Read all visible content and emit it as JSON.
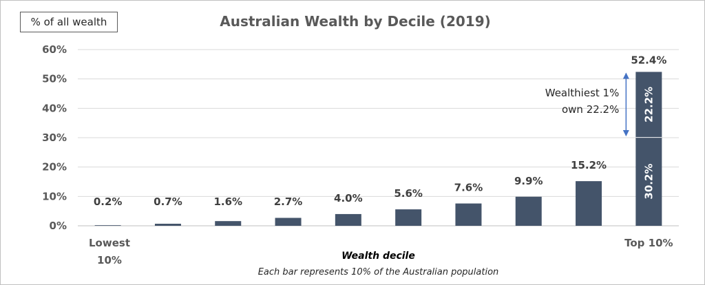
{
  "chart_data": {
    "type": "bar",
    "title": "Australian Wealth by Decile (2019)",
    "ylabel": "% of all wealth",
    "xlabel": "Wealth decile",
    "xsubtitle": "Each bar represents 10% of the Australian population",
    "ylim": [
      0,
      60
    ],
    "yticks": [
      0,
      10,
      20,
      30,
      40,
      50,
      60
    ],
    "ytick_labels": [
      "0%",
      "10%",
      "20%",
      "30%",
      "40%",
      "50%",
      "60%"
    ],
    "grid": true,
    "categories": [
      "1",
      "2",
      "3",
      "4",
      "5",
      "6",
      "7",
      "8",
      "9",
      "10"
    ],
    "values": [
      0.2,
      0.7,
      1.6,
      2.7,
      4.0,
      5.6,
      7.6,
      9.9,
      15.2,
      52.4
    ],
    "value_labels": [
      "0.2%",
      "0.7%",
      "1.6%",
      "2.7%",
      "4.0%",
      "5.6%",
      "7.6%",
      "9.9%",
      "15.2%",
      "52.4%"
    ],
    "first_category_label": "Lowest 10%",
    "last_category_label": "Top 10%",
    "top_decile_segments": [
      {
        "value": 30.2,
        "label": "30.2%"
      },
      {
        "value": 22.2,
        "label": "22.2%"
      }
    ],
    "annotation": [
      "Wealthiest 1%",
      "own 22.2%"
    ],
    "bar_color": "#44546a",
    "arrow_color": "#4472c4",
    "grid_color": "#d9d9d9"
  }
}
